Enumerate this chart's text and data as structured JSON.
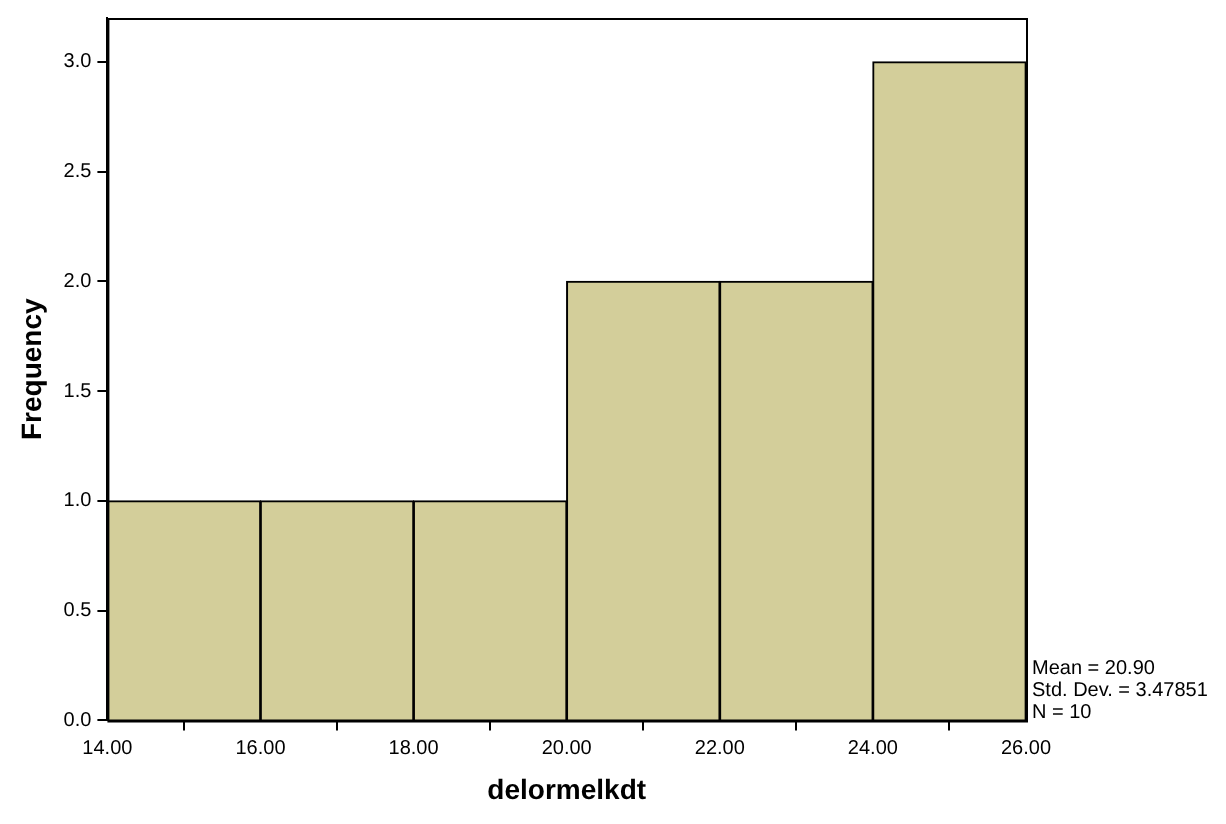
{
  "chart_data": {
    "type": "histogram",
    "xlabel": "delormelkdt",
    "ylabel": "Frequency",
    "bins": [
      14,
      16,
      18,
      20,
      22,
      24,
      26
    ],
    "values": [
      1,
      1,
      1,
      2,
      2,
      3
    ],
    "color": "#d3ce9a",
    "xlim": [
      14,
      26
    ],
    "xticks": [
      {
        "value": 14,
        "label": "14.00"
      },
      {
        "value": 16,
        "label": "16.00"
      },
      {
        "value": 18,
        "label": "18.00"
      },
      {
        "value": 20,
        "label": "20.00"
      },
      {
        "value": 22,
        "label": "22.00"
      },
      {
        "value": 24,
        "label": "24.00"
      },
      {
        "value": 26,
        "label": "26.00"
      }
    ],
    "ylim": [
      0,
      3.2
    ],
    "yticks": [
      {
        "value": 0,
        "label": "0.0"
      },
      {
        "value": 0.5,
        "label": "0.5"
      },
      {
        "value": 1,
        "label": "1.0"
      },
      {
        "value": 1.5,
        "label": "1.5"
      },
      {
        "value": 2,
        "label": "2.0"
      },
      {
        "value": 2.5,
        "label": "2.5"
      },
      {
        "value": 3,
        "label": "3.0"
      }
    ],
    "grid": false,
    "legend": false,
    "annotations": [
      "Mean = 20.90",
      "Std. Dev. = 3.47851",
      "N = 10"
    ]
  }
}
